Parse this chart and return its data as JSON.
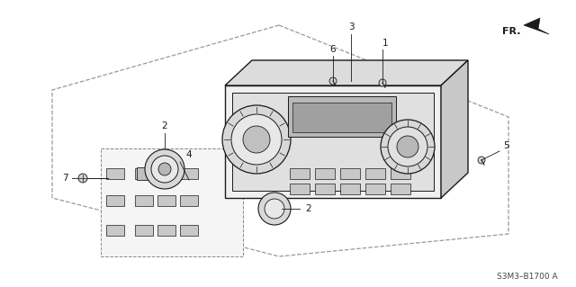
{
  "part_number": "S3M3–B1700 A",
  "bg_color": "#ffffff",
  "line_color": "#1a1a1a",
  "gray_line": "#999999",
  "fig_width": 6.4,
  "fig_height": 3.19,
  "dpi": 100
}
